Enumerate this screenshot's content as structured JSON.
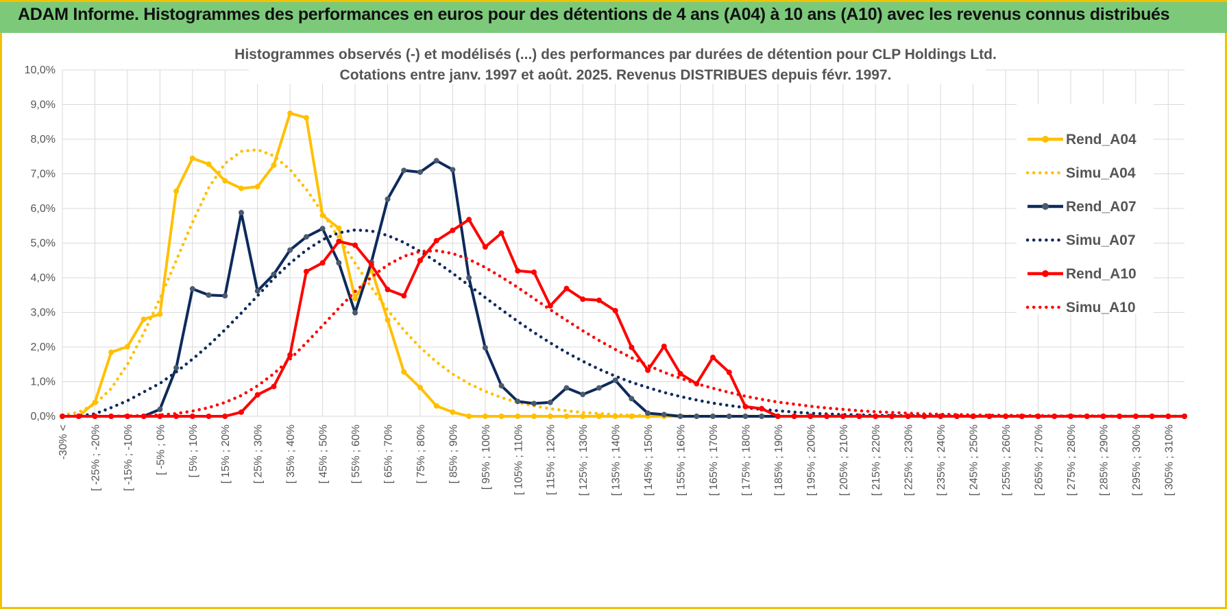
{
  "banner": {
    "title": "ADAM Informe. Histogrammes des performances en euros pour des détentions de 4 ans (A04) à 10 ans (A10) avec les revenus connus distribués"
  },
  "colors": {
    "a04": "#ffc000",
    "a07": "#0e2a5c",
    "a10": "#ff0000",
    "banner": "#7cc97a",
    "border": "#f2c200",
    "grid": "#d9d9d9"
  },
  "chart_data": {
    "type": "line",
    "title": "Histogrammes observés (-) et modélisés (...) des performances par durées de détention pour CLP Holdings Ltd.",
    "subtitle": "Cotations entre janv. 1997 et août. 2025. Revenus DISTRIBUES depuis févr. 1997.",
    "xlabel": "",
    "ylabel": "",
    "ylim": [
      0,
      0.1
    ],
    "y_ticks": [
      "0,0%",
      "1,0%",
      "2,0%",
      "3,0%",
      "4,0%",
      "5,0%",
      "6,0%",
      "7,0%",
      "8,0%",
      "9,0%",
      "10,0%"
    ],
    "grid": true,
    "legend_position": "right",
    "x_tick_labels": [
      "-30% <",
      "[ -25% ; -20%",
      "[ -15% ; -10%",
      "[ -5% ; 0%",
      "[ 5% ; 10%",
      "[ 15% ; 20%",
      "[ 25% ; 30%",
      "[ 35% ; 40%",
      "[ 45% ; 50%",
      "[ 55% ; 60%",
      "[ 65% ; 70%",
      "[ 75% ; 80%",
      "[ 85% ; 90%",
      "[ 95% ; 100%",
      "[ 105% ; 110%",
      "[ 115% ; 120%",
      "[ 125% ; 130%",
      "[ 135% ; 140%",
      "[ 145% ; 150%",
      "[ 155% ; 160%",
      "[ 165% ; 170%",
      "[ 175% ; 180%",
      "[ 185% ; 190%",
      "[ 195% ; 200%",
      "[ 205% ; 210%",
      "[ 215% ; 220%",
      "[ 225% ; 230%",
      "[ 235% ; 240%",
      "[ 245% ; 250%",
      "[ 255% ; 260%",
      "[ 265% ; 270%",
      "[ 275% ; 280%",
      "[ 285% ; 290%",
      "[ 295% ; 300%",
      "[ 305% ; 310%"
    ],
    "series": [
      {
        "name": "Rend_A04",
        "style": "solid",
        "markers": true,
        "color": "#ffc000",
        "values": [
          0,
          0,
          0.004,
          0.0185,
          0.0201,
          0.028,
          0.0295,
          0.065,
          0.0745,
          0.0728,
          0.068,
          0.0658,
          0.0663,
          0.0725,
          0.0875,
          0.0862,
          0.058,
          0.0543,
          0.034,
          0.0425,
          0.0278,
          0.0128,
          0.0083,
          0.003,
          0.0012,
          0,
          0,
          0,
          0,
          0,
          0,
          0,
          0,
          0,
          0,
          0,
          0,
          0,
          0,
          0,
          0,
          0,
          0,
          0,
          0,
          0,
          0,
          0,
          0,
          0,
          0,
          0,
          0,
          0,
          0,
          0,
          0,
          0,
          0,
          0,
          0,
          0,
          0,
          0,
          0,
          0,
          0,
          0,
          0,
          0
        ]
      },
      {
        "name": "Simu_A04",
        "style": "dotted",
        "markers": false,
        "color": "#ffc000",
        "values": [
          0.0003,
          0.0012,
          0.0035,
          0.008,
          0.015,
          0.024,
          0.034,
          0.045,
          0.056,
          0.066,
          0.073,
          0.0765,
          0.077,
          0.0752,
          0.0712,
          0.0655,
          0.0588,
          0.0515,
          0.0442,
          0.0372,
          0.0307,
          0.0249,
          0.0199,
          0.0157,
          0.0122,
          0.0094,
          0.0072,
          0.0054,
          0.004,
          0.003,
          0.0022,
          0.0016,
          0.0011,
          0.0008,
          0.0005,
          0.0003,
          0.0002,
          0.0001,
          0.0001,
          0,
          0,
          0,
          0,
          0,
          0,
          0,
          0,
          0,
          0,
          0,
          0,
          0,
          0,
          0,
          0,
          0,
          0,
          0,
          0,
          0,
          0,
          0,
          0,
          0,
          0,
          0,
          0,
          0,
          0,
          0
        ]
      },
      {
        "name": "Rend_A07",
        "style": "solid",
        "markers": true,
        "color": "#0e2a5c",
        "values": [
          0,
          0,
          0,
          0,
          0,
          0,
          0.002,
          0.014,
          0.0368,
          0.035,
          0.0348,
          0.0588,
          0.0362,
          0.041,
          0.048,
          0.0518,
          0.0542,
          0.0443,
          0.0299,
          0.0445,
          0.0627,
          0.071,
          0.0705,
          0.0738,
          0.0712,
          0.04,
          0.0198,
          0.0088,
          0.0043,
          0.0037,
          0.004,
          0.0082,
          0.0063,
          0.0082,
          0.0104,
          0.0051,
          0.0009,
          0.0005,
          0,
          0,
          0,
          0,
          0,
          0,
          0,
          0,
          0,
          0,
          0,
          0,
          0,
          0,
          0,
          0,
          0,
          0,
          0,
          0,
          0,
          0,
          0,
          0,
          0,
          0,
          0,
          0,
          0,
          0,
          0,
          0
        ]
      },
      {
        "name": "Simu_A07",
        "style": "dotted",
        "markers": false,
        "color": "#0e2a5c",
        "values": [
          0,
          0.0001,
          0.0007,
          0.0025,
          0.0045,
          0.007,
          0.0095,
          0.0128,
          0.0165,
          0.0205,
          0.025,
          0.0298,
          0.0348,
          0.0398,
          0.0442,
          0.048,
          0.051,
          0.053,
          0.0538,
          0.0535,
          0.0522,
          0.0502,
          0.0476,
          0.0446,
          0.0413,
          0.0378,
          0.0343,
          0.0308,
          0.0274,
          0.0242,
          0.0212,
          0.0184,
          0.0159,
          0.0136,
          0.0116,
          0.0098,
          0.0083,
          0.0069,
          0.0057,
          0.0047,
          0.0038,
          0.0031,
          0.0025,
          0.002,
          0.0016,
          0.0012,
          0.0009,
          0.0007,
          0.0005,
          0.0004,
          0.0003,
          0.0002,
          0.0002,
          0.0001,
          0.0001,
          0,
          0,
          0,
          0,
          0,
          0,
          0,
          0,
          0,
          0,
          0,
          0,
          0,
          0,
          0
        ]
      },
      {
        "name": "Rend_A10",
        "style": "solid",
        "markers": true,
        "color": "#ff0000",
        "values": [
          0,
          0,
          0,
          0,
          0,
          0,
          0,
          0,
          0,
          0,
          0,
          0.0012,
          0.0062,
          0.0086,
          0.0177,
          0.0418,
          0.0443,
          0.0505,
          0.0494,
          0.0437,
          0.0366,
          0.0348,
          0.045,
          0.0507,
          0.0537,
          0.0568,
          0.0489,
          0.0529,
          0.042,
          0.0416,
          0.0319,
          0.0369,
          0.0338,
          0.0335,
          0.0305,
          0.0199,
          0.0133,
          0.0202,
          0.0123,
          0.0094,
          0.017,
          0.0127,
          0.0028,
          0.0022,
          0,
          0,
          0,
          0,
          0,
          0,
          0,
          0,
          0,
          0,
          0,
          0,
          0,
          0,
          0,
          0,
          0,
          0,
          0,
          0,
          0,
          0,
          0,
          0,
          0,
          0
        ]
      },
      {
        "name": "Simu_A10",
        "style": "dotted",
        "markers": false,
        "color": "#ff0000",
        "values": [
          0,
          0,
          0,
          0,
          0.0001,
          0.0002,
          0.0004,
          0.0008,
          0.0015,
          0.0025,
          0.004,
          0.006,
          0.0088,
          0.0123,
          0.0165,
          0.0212,
          0.0262,
          0.0312,
          0.036,
          0.0402,
          0.0437,
          0.0462,
          0.0476,
          0.0478,
          0.047,
          0.0453,
          0.043,
          0.0402,
          0.0372,
          0.034,
          0.0308,
          0.0277,
          0.0247,
          0.0219,
          0.0193,
          0.0169,
          0.0147,
          0.0127,
          0.011,
          0.0094,
          0.0081,
          0.0069,
          0.0058,
          0.0049,
          0.0041,
          0.0035,
          0.0029,
          0.0024,
          0.002,
          0.0016,
          0.0013,
          0.0011,
          0.0009,
          0.0007,
          0.0006,
          0.0005,
          0.0004,
          0.0003,
          0.0003,
          0.0002,
          0.0002,
          0.0001,
          0.0001,
          0.0001,
          0.0001,
          0,
          0,
          0,
          0,
          0
        ]
      }
    ]
  }
}
